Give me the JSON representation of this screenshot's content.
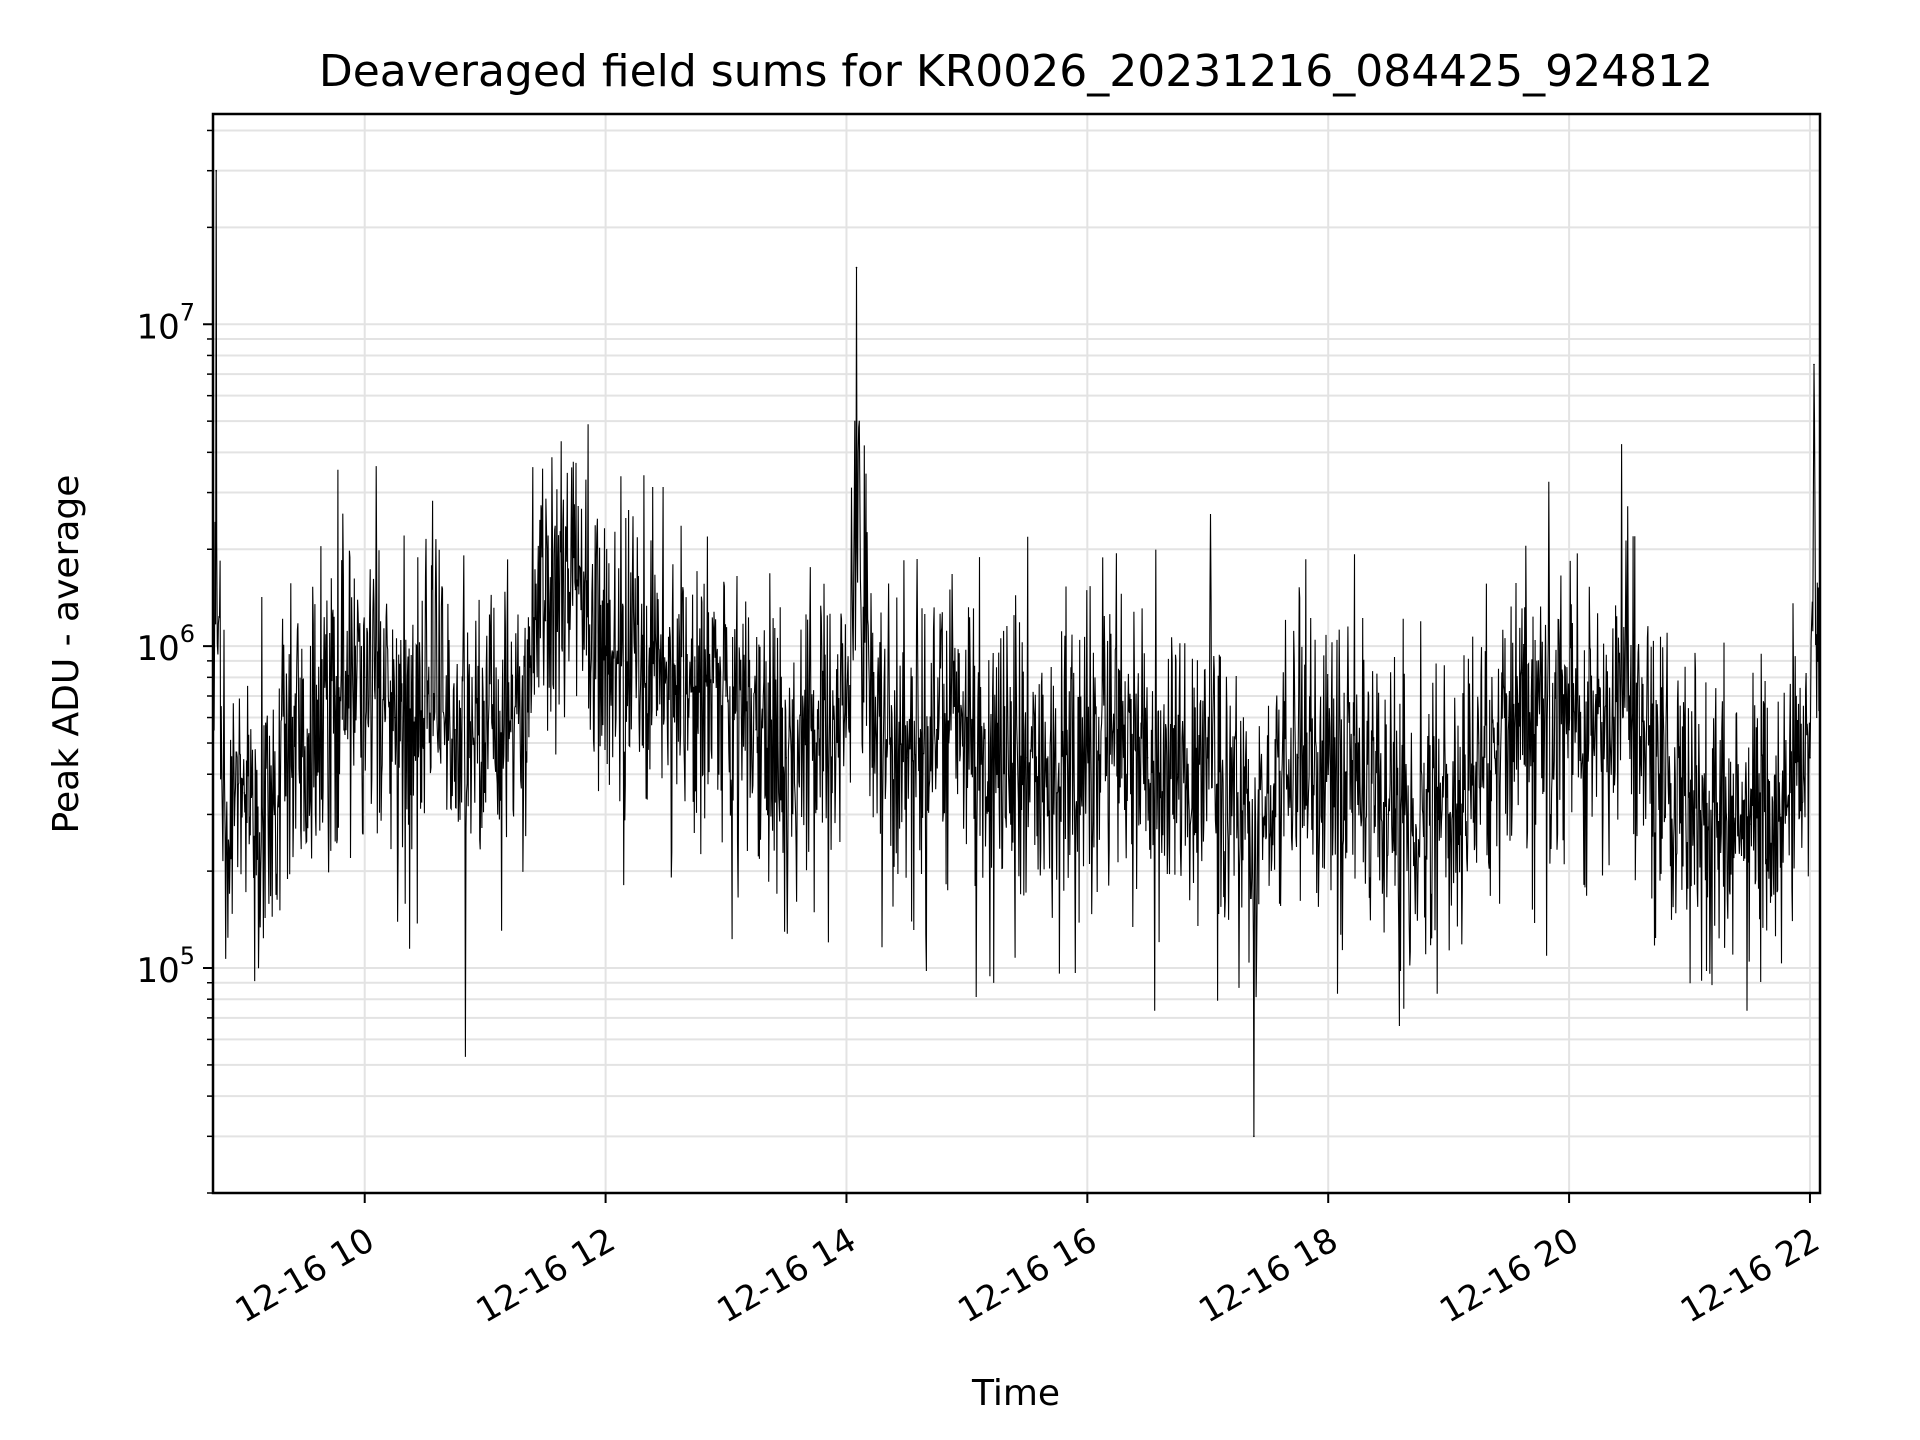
{
  "chart_data": {
    "type": "line",
    "title": "Deaveraged field sums for KR0026_20231216_084425_924812",
    "xlabel": "Time",
    "ylabel": "Peak ADU - average",
    "yscale": "log",
    "ylim": [
      20000,
      45000000
    ],
    "xlim": [
      "2023-12-16T08:44:25",
      "2023-12-16T22:05:00"
    ],
    "grid": true,
    "x_ticks": [
      {
        "label": "12-16 10",
        "time": "2023-12-16T10:00:00"
      },
      {
        "label": "12-16 12",
        "time": "2023-12-16T12:00:00"
      },
      {
        "label": "12-16 14",
        "time": "2023-12-16T14:00:00"
      },
      {
        "label": "12-16 16",
        "time": "2023-12-16T16:00:00"
      },
      {
        "label": "12-16 18",
        "time": "2023-12-16T18:00:00"
      },
      {
        "label": "12-16 20",
        "time": "2023-12-16T20:00:00"
      },
      {
        "label": "12-16 22",
        "time": "2023-12-16T22:00:00"
      }
    ],
    "y_ticks": [
      {
        "base": "10",
        "exp": "5",
        "value": 100000
      },
      {
        "base": "10",
        "exp": "6",
        "value": 1000000
      },
      {
        "base": "10",
        "exp": "7",
        "value": 10000000
      }
    ],
    "series": [
      {
        "color": "#000000",
        "x": [
          "2023-12-16T08:44:25",
          "2023-12-16T08:46:00",
          "2023-12-16T08:51:00",
          "2023-12-16T09:00:00",
          "2023-12-16T09:15:00",
          "2023-12-16T09:24:00",
          "2023-12-16T09:30:00",
          "2023-12-16T09:45:00",
          "2023-12-16T10:00:00",
          "2023-12-16T10:15:00",
          "2023-12-16T10:30:00",
          "2023-12-16T10:45:00",
          "2023-12-16T11:00:00",
          "2023-12-16T11:15:00",
          "2023-12-16T11:30:00",
          "2023-12-16T11:45:00",
          "2023-12-16T12:00:00",
          "2023-12-16T12:15:00",
          "2023-12-16T12:30:00",
          "2023-12-16T12:45:00",
          "2023-12-16T13:00:00",
          "2023-12-16T13:15:00",
          "2023-12-16T13:30:00",
          "2023-12-16T13:45:00",
          "2023-12-16T14:00:00",
          "2023-12-16T14:05:00",
          "2023-12-16T14:15:00",
          "2023-12-16T14:30:00",
          "2023-12-16T14:45:00",
          "2023-12-16T15:00:00",
          "2023-12-16T15:15:00",
          "2023-12-16T15:30:00",
          "2023-12-16T15:45:00",
          "2023-12-16T16:00:00",
          "2023-12-16T16:15:00",
          "2023-12-16T16:30:00",
          "2023-12-16T16:45:00",
          "2023-12-16T17:00:00",
          "2023-12-16T17:15:00",
          "2023-12-16T17:23:00",
          "2023-12-16T17:30:00",
          "2023-12-16T17:45:00",
          "2023-12-16T18:00:00",
          "2023-12-16T18:15:00",
          "2023-12-16T18:30:00",
          "2023-12-16T18:45:00",
          "2023-12-16T19:00:00",
          "2023-12-16T19:15:00",
          "2023-12-16T19:30:00",
          "2023-12-16T19:45:00",
          "2023-12-16T20:00:00",
          "2023-12-16T20:15:00",
          "2023-12-16T20:30:00",
          "2023-12-16T20:45:00",
          "2023-12-16T21:00:00",
          "2023-12-16T21:15:00",
          "2023-12-16T21:30:00",
          "2023-12-16T21:45:00",
          "2023-12-16T22:00:00",
          "2023-12-16T22:02:00",
          "2023-12-16T22:05:00"
        ],
        "y": [
          400000,
          30000000,
          250000,
          350000,
          300000,
          600000,
          450000,
          700000,
          800000,
          600000,
          700000,
          550000,
          500000,
          650000,
          1200000,
          1500000,
          1000000,
          900000,
          800000,
          750000,
          700000,
          550000,
          450000,
          500000,
          600000,
          15000000,
          500000,
          450000,
          550000,
          600000,
          400000,
          450000,
          350000,
          500000,
          550000,
          450000,
          400000,
          450000,
          350000,
          30000,
          350000,
          450000,
          400000,
          500000,
          300000,
          250000,
          300000,
          500000,
          600000,
          700000,
          550000,
          650000,
          700000,
          400000,
          350000,
          300000,
          280000,
          300000,
          450000,
          7500000,
          600000
        ]
      }
    ]
  }
}
